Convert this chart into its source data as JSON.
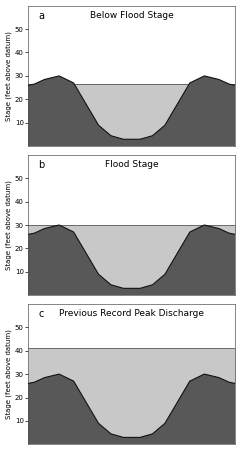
{
  "panels": [
    {
      "label": "a",
      "title": "Below Flood Stage",
      "water_level": 26.5,
      "ylim": [
        0,
        60
      ]
    },
    {
      "label": "b",
      "title": "Flood Stage",
      "water_level": 30.0,
      "ylim": [
        0,
        60
      ]
    },
    {
      "label": "c",
      "title": "Previous Record Peak Discharge",
      "water_level": 41.0,
      "ylim": [
        0,
        60
      ]
    }
  ],
  "ylabel": "Stage (feet above datum)",
  "bank_color": "#585858",
  "water_color": "#c8c8c8",
  "background_color": "#ffffff",
  "yticks": [
    10,
    20,
    30,
    40,
    50
  ],
  "xlim": [
    0,
    10
  ],
  "terrain_x": [
    0.0,
    0.3,
    0.8,
    1.5,
    2.2,
    2.8,
    3.4,
    4.0,
    4.6,
    5.0,
    5.4,
    6.0,
    6.6,
    7.2,
    7.8,
    8.5,
    9.2,
    9.7,
    10.0
  ],
  "terrain_y": [
    26.0,
    26.5,
    28.5,
    30.0,
    27.0,
    18.0,
    9.0,
    4.5,
    3.0,
    3.0,
    3.0,
    4.5,
    9.0,
    18.0,
    27.0,
    30.0,
    28.5,
    26.5,
    26.0
  ]
}
